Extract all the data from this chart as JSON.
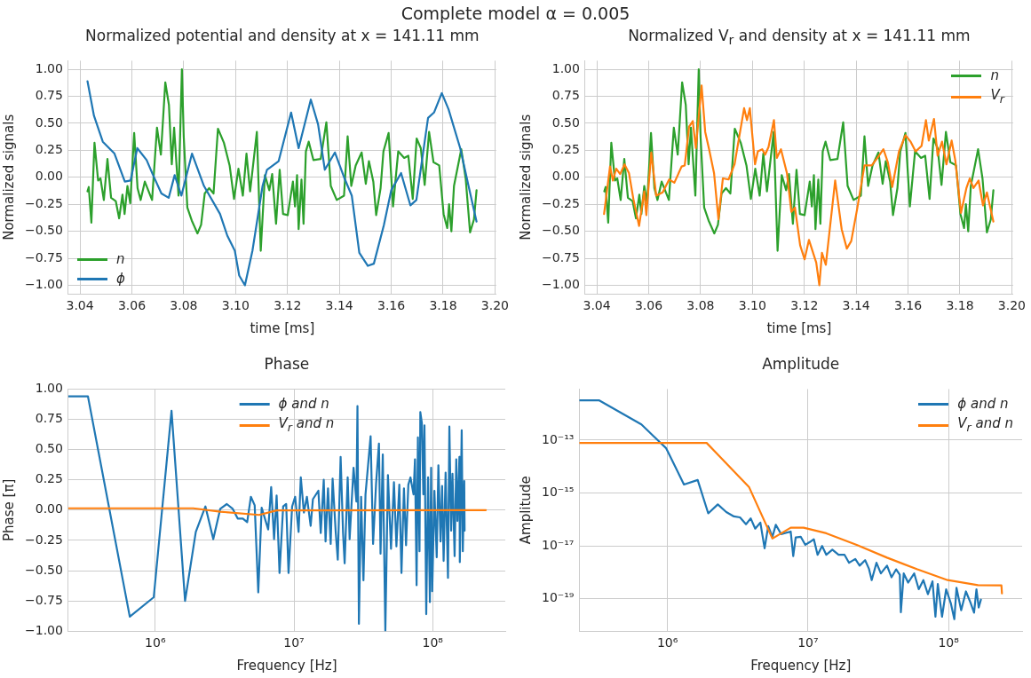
{
  "chart_data": [
    {
      "type": "line",
      "title": "Normalized potential and density at x = 141.11 mm",
      "annotations": [
        "Complete model α = 0.005"
      ],
      "xlabel": "time [ms]",
      "ylabel": "Normalized signals",
      "xlim": [
        3.0355,
        3.2005
      ],
      "ylim": [
        -1.08,
        1.08
      ],
      "xticks": [
        {
          "value": 3.04,
          "label": "3.04"
        },
        {
          "value": 3.06,
          "label": "3.06"
        },
        {
          "value": 3.08,
          "label": "3.08"
        },
        {
          "value": 3.1,
          "label": "3.10"
        },
        {
          "value": 3.12,
          "label": "3.12"
        },
        {
          "value": 3.14,
          "label": "3.14"
        },
        {
          "value": 3.16,
          "label": "3.16"
        },
        {
          "value": 3.18,
          "label": "3.18"
        },
        {
          "value": 3.2,
          "label": "3.20"
        }
      ],
      "yticks": [
        {
          "value": -1,
          "label": "−1.00"
        },
        {
          "value": -0.75,
          "label": "−0.75"
        },
        {
          "value": -0.5,
          "label": "−0.50"
        },
        {
          "value": -0.25,
          "label": "−0.25"
        },
        {
          "value": 0,
          "label": "0.00"
        },
        {
          "value": 0.25,
          "label": "0.25"
        },
        {
          "value": 0.5,
          "label": "0.50"
        },
        {
          "value": 0.75,
          "label": "0.75"
        },
        {
          "value": 1,
          "label": "1.00"
        }
      ],
      "grid": true,
      "legend": "bottom left",
      "series": [
        {
          "name": "n",
          "color": "#2ca02c",
          "x": [
            3.0429,
            3.0434,
            3.0444,
            3.0456,
            3.047,
            3.0479,
            3.0492,
            3.0506,
            3.052,
            3.0538,
            3.0551,
            3.0564,
            3.0572,
            3.0583,
            3.0594,
            3.0609,
            3.0622,
            3.0634,
            3.065,
            3.0678,
            3.0697,
            3.0712,
            3.0729,
            3.0743,
            3.0754,
            3.0763,
            3.078,
            3.0793,
            3.08,
            3.0814,
            3.0831,
            3.0853,
            3.0867,
            3.0881,
            3.0898,
            3.0915,
            3.0932,
            3.0955,
            3.0977,
            3.0994,
            3.1011,
            3.1028,
            3.1042,
            3.1056,
            3.1082,
            3.1097,
            3.1113,
            3.113,
            3.1141,
            3.1156,
            3.117,
            3.1183,
            3.1201,
            3.1221,
            3.1229,
            3.1237,
            3.1243,
            3.1254,
            3.1262,
            3.1271,
            3.1282,
            3.13,
            3.1328,
            3.135,
            3.1367,
            3.139,
            3.1418,
            3.1432,
            3.1446,
            3.1463,
            3.1486,
            3.1502,
            3.1514,
            3.1531,
            3.1542,
            3.1559,
            3.157,
            3.159,
            3.1607,
            3.1627,
            3.165,
            3.1666,
            3.1683,
            3.1698,
            3.1714,
            3.1729,
            3.1746,
            3.1763,
            3.1785,
            3.1802,
            3.1816,
            3.1823,
            3.1832,
            3.1842,
            3.187,
            3.1887,
            3.1904,
            3.1919,
            3.1929
          ],
          "values": [
            -0.13,
            -0.09,
            -0.42,
            0.32,
            -0.03,
            -0.01,
            -0.21,
            0.17,
            -0.19,
            -0.22,
            -0.38,
            -0.16,
            -0.34,
            -0.08,
            -0.24,
            0.41,
            -0.1,
            -0.21,
            -0.04,
            -0.21,
            0.46,
            0.21,
            0.88,
            0.67,
            0.12,
            0.46,
            -0.17,
            1.0,
            0.38,
            -0.28,
            -0.4,
            -0.52,
            -0.44,
            -0.15,
            -0.1,
            -0.15,
            0.45,
            0.32,
            0.11,
            -0.2,
            0.08,
            -0.17,
            0.22,
            -0.13,
            0.42,
            -0.68,
            0.02,
            -0.12,
            0.03,
            -0.43,
            0.07,
            -0.34,
            -0.35,
            -0.04,
            -0.27,
            0.02,
            -0.48,
            -0.02,
            -0.43,
            0.24,
            0.33,
            0.16,
            0.17,
            0.51,
            -0.08,
            -0.21,
            -0.17,
            0.38,
            -0.08,
            0.11,
            0.23,
            -0.06,
            0.15,
            -0.04,
            -0.35,
            -0.1,
            0.24,
            0.41,
            -0.27,
            0.24,
            0.18,
            0.2,
            -0.2,
            0.36,
            0.27,
            -0.07,
            0.42,
            0.14,
            0.11,
            -0.34,
            -0.47,
            -0.25,
            -0.5,
            -0.08,
            0.26,
            -0.01,
            -0.51,
            -0.39,
            -0.12
          ]
        },
        {
          "name": "ϕ",
          "color": "#1f77b4",
          "x": [
            3.0429,
            3.0454,
            3.0488,
            3.0533,
            3.0573,
            3.0595,
            3.0621,
            3.0657,
            3.068,
            3.0714,
            3.0742,
            3.0765,
            3.0791,
            3.0832,
            3.0878,
            3.094,
            3.0968,
            3.0997,
            3.1014,
            3.1036,
            3.1065,
            3.1104,
            3.1121,
            3.1166,
            3.1214,
            3.1243,
            3.129,
            3.1318,
            3.1344,
            3.1383,
            3.142,
            3.1448,
            3.1477,
            3.151,
            3.1533,
            3.1572,
            3.16,
            3.1638,
            3.1674,
            3.1697,
            3.1742,
            3.1765,
            3.1795,
            3.1821,
            3.1866,
            3.19,
            3.1929
          ],
          "values": [
            0.89,
            0.57,
            0.33,
            0.22,
            -0.04,
            -0.03,
            0.27,
            0.16,
            0.03,
            -0.15,
            -0.19,
            0.02,
            -0.17,
            0.22,
            -0.08,
            -0.34,
            -0.54,
            -0.68,
            -0.91,
            -1.0,
            -0.68,
            -0.08,
            0.07,
            0.15,
            0.6,
            0.27,
            0.72,
            0.49,
            0.07,
            0.23,
            -0.01,
            -0.17,
            -0.7,
            -0.82,
            -0.8,
            -0.44,
            -0.12,
            0.04,
            -0.26,
            -0.21,
            0.55,
            0.6,
            0.78,
            0.63,
            0.27,
            -0.1,
            -0.41
          ]
        }
      ]
    },
    {
      "type": "line",
      "title": "Normalized V$_{r}$ and density at x = 141.11 mm",
      "xlabel": "time [ms]",
      "ylabel": "Normalized signals",
      "xlim": [
        3.0355,
        3.2005
      ],
      "ylim": [
        -1.08,
        1.08
      ],
      "xticks": [
        {
          "value": 3.04,
          "label": "3.04"
        },
        {
          "value": 3.06,
          "label": "3.06"
        },
        {
          "value": 3.08,
          "label": "3.08"
        },
        {
          "value": 3.1,
          "label": "3.10"
        },
        {
          "value": 3.12,
          "label": "3.12"
        },
        {
          "value": 3.14,
          "label": "3.14"
        },
        {
          "value": 3.16,
          "label": "3.16"
        },
        {
          "value": 3.18,
          "label": "3.18"
        },
        {
          "value": 3.2,
          "label": "3.20"
        }
      ],
      "yticks": [
        {
          "value": -1,
          "label": "−1.00"
        },
        {
          "value": -0.75,
          "label": "−0.75"
        },
        {
          "value": -0.5,
          "label": "−0.50"
        },
        {
          "value": -0.25,
          "label": "−0.25"
        },
        {
          "value": 0,
          "label": "0.00"
        },
        {
          "value": 0.25,
          "label": "0.25"
        },
        {
          "value": 0.5,
          "label": "0.50"
        },
        {
          "value": 0.75,
          "label": "0.75"
        },
        {
          "value": 1,
          "label": "1.00"
        }
      ],
      "grid": true,
      "legend": "top right",
      "series": [
        {
          "name": "n",
          "color": "#2ca02c",
          "x": [
            3.0429,
            3.0434,
            3.0444,
            3.0456,
            3.047,
            3.0479,
            3.0492,
            3.0506,
            3.052,
            3.0538,
            3.0551,
            3.0564,
            3.0572,
            3.0583,
            3.0594,
            3.0609,
            3.0622,
            3.0634,
            3.065,
            3.0678,
            3.0697,
            3.0712,
            3.0729,
            3.0743,
            3.0754,
            3.0763,
            3.078,
            3.0793,
            3.08,
            3.0814,
            3.0831,
            3.0853,
            3.0867,
            3.0881,
            3.0898,
            3.0915,
            3.0932,
            3.0955,
            3.0977,
            3.0994,
            3.1011,
            3.1028,
            3.1042,
            3.1056,
            3.1082,
            3.1097,
            3.1113,
            3.113,
            3.1141,
            3.1156,
            3.117,
            3.1183,
            3.1201,
            3.1221,
            3.1229,
            3.1237,
            3.1243,
            3.1254,
            3.1262,
            3.1271,
            3.1282,
            3.13,
            3.1328,
            3.135,
            3.1367,
            3.139,
            3.1418,
            3.1432,
            3.1446,
            3.1463,
            3.1486,
            3.1502,
            3.1514,
            3.1531,
            3.1542,
            3.1559,
            3.157,
            3.159,
            3.1607,
            3.1627,
            3.165,
            3.1666,
            3.1683,
            3.1698,
            3.1714,
            3.1729,
            3.1746,
            3.1763,
            3.1785,
            3.1802,
            3.1816,
            3.1823,
            3.1832,
            3.1842,
            3.187,
            3.1887,
            3.1904,
            3.1919,
            3.1929
          ],
          "values": [
            -0.13,
            -0.09,
            -0.42,
            0.32,
            -0.03,
            -0.01,
            -0.21,
            0.17,
            -0.19,
            -0.22,
            -0.38,
            -0.16,
            -0.34,
            -0.08,
            -0.24,
            0.41,
            -0.1,
            -0.21,
            -0.04,
            -0.21,
            0.46,
            0.21,
            0.88,
            0.67,
            0.12,
            0.46,
            -0.17,
            1.0,
            0.38,
            -0.28,
            -0.4,
            -0.52,
            -0.44,
            -0.15,
            -0.1,
            -0.15,
            0.45,
            0.32,
            0.11,
            -0.2,
            0.08,
            -0.17,
            0.22,
            -0.13,
            0.42,
            -0.68,
            0.02,
            -0.12,
            0.03,
            -0.43,
            0.07,
            -0.34,
            -0.35,
            -0.04,
            -0.27,
            0.02,
            -0.48,
            -0.02,
            -0.43,
            0.24,
            0.33,
            0.16,
            0.17,
            0.51,
            -0.08,
            -0.21,
            -0.17,
            0.38,
            -0.08,
            0.11,
            0.23,
            -0.06,
            0.15,
            -0.04,
            -0.35,
            -0.1,
            0.24,
            0.41,
            -0.27,
            0.24,
            0.18,
            0.2,
            -0.2,
            0.36,
            0.27,
            -0.07,
            0.42,
            0.14,
            0.11,
            -0.34,
            -0.47,
            -0.25,
            -0.5,
            -0.08,
            0.26,
            -0.01,
            -0.51,
            -0.39,
            -0.12
          ]
        },
        {
          "name": "V$_{r}$",
          "color": "#ff7f0e",
          "x": [
            3.0428,
            3.0451,
            3.0462,
            3.0475,
            3.049,
            3.0507,
            3.0524,
            3.0541,
            3.0563,
            3.0583,
            3.0591,
            3.061,
            3.0629,
            3.0654,
            3.0679,
            3.0699,
            3.0727,
            3.0739,
            3.0756,
            3.077,
            3.0782,
            3.0804,
            3.0818,
            3.0833,
            3.0852,
            3.0869,
            3.0886,
            3.0908,
            3.0931,
            3.0968,
            3.0979,
            3.099,
            3.101,
            3.1021,
            3.1038,
            3.1049,
            3.1062,
            3.1083,
            3.1094,
            3.111,
            3.1133,
            3.115,
            3.1164,
            3.1184,
            3.1201,
            3.1218,
            3.1246,
            3.1258,
            3.1268,
            3.1283,
            3.1319,
            3.1344,
            3.1364,
            3.1381,
            3.1404,
            3.1432,
            3.146,
            3.1488,
            3.1505,
            3.1522,
            3.1539,
            3.1565,
            3.159,
            3.161,
            3.1629,
            3.1652,
            3.1669,
            3.168,
            3.17,
            3.1714,
            3.1731,
            3.1748,
            3.1768,
            3.1782,
            3.1804,
            3.1825,
            3.1838,
            3.1852,
            3.1872,
            3.1889,
            3.1904,
            3.1929
          ],
          "values": [
            -0.34,
            0.1,
            -0.03,
            0.08,
            0.03,
            0.12,
            0.04,
            -0.2,
            -0.45,
            -0.13,
            -0.35,
            0.23,
            -0.17,
            -0.14,
            -0.02,
            -0.05,
            0.1,
            0.11,
            0.47,
            0.52,
            0.27,
            0.85,
            0.42,
            0.26,
            0.04,
            -0.39,
            -0.01,
            -0.02,
            0.12,
            0.64,
            0.53,
            0.64,
            0.12,
            0.24,
            0.26,
            0.21,
            0.28,
            0.53,
            0.18,
            0.26,
            0.04,
            -0.32,
            -0.28,
            -0.63,
            -0.76,
            -0.58,
            -0.79,
            -1.0,
            -0.7,
            -0.81,
            -0.03,
            -0.48,
            -0.66,
            -0.59,
            -0.29,
            0.11,
            0.11,
            0.2,
            0.26,
            0.14,
            -0.09,
            0.24,
            0.39,
            0.33,
            0.24,
            0.29,
            0.53,
            0.34,
            0.54,
            0.2,
            0.33,
            0.12,
            0.34,
            0.16,
            -0.33,
            -0.1,
            -0.01,
            -0.1,
            -0.03,
            -0.26,
            -0.14,
            -0.41
          ]
        }
      ]
    },
    {
      "type": "line",
      "title": "Phase",
      "xlabel": "Frequency [Hz]",
      "ylabel": "Phase [π]",
      "log": "x",
      "xlim": [
        236000,
        334000000
      ],
      "ylim": [
        -1,
        1
      ],
      "xticks": [
        {
          "value": 1000000,
          "label": "10⁶"
        },
        {
          "value": 10000000,
          "label": "10⁷"
        },
        {
          "value": 100000000,
          "label": "10⁸"
        }
      ],
      "yticks": [
        {
          "value": -1,
          "label": "−1.00"
        },
        {
          "value": -0.75,
          "label": "−0.75"
        },
        {
          "value": -0.5,
          "label": "−0.50"
        },
        {
          "value": -0.25,
          "label": "−0.25"
        },
        {
          "value": 0,
          "label": "0.00"
        },
        {
          "value": 0.25,
          "label": "0.25"
        },
        {
          "value": 0.5,
          "label": "0.50"
        },
        {
          "value": 0.75,
          "label": "0.75"
        },
        {
          "value": 1,
          "label": "1.00"
        }
      ],
      "grid": true,
      "legend": "top",
      "series": [
        {
          "name": "ϕ and n",
          "color": "#1f77b4",
          "x": [
            236000.0,
            327000.0,
            655000.0,
            975000.0,
            1310000.0,
            1640000.0,
            1960000.0,
            2300000.0,
            2620000.0,
            2940000.0,
            3280000.0,
            3620000.0,
            3930000.0,
            4280000.0,
            4600000.0,
            4890000.0,
            5210000.0,
            5530000.0,
            5850000.0,
            6520000.0,
            6850000.0,
            7190000.0,
            7500000.0,
            7870000.0,
            8360000.0,
            8790000.0,
            9140000.0,
            9700000.0,
            10200000.0,
            10800000.0,
            11200000.0,
            11800000.0,
            12400000.0,
            13200000.0,
            13700000.0,
            15000000.0,
            15600000.0,
            16400000.0,
            16900000.0,
            17600000.0,
            18400000.0,
            19000000.0,
            20000000.0,
            20700000.0,
            21700000.0,
            22600000.0,
            23200000.0,
            24400000.0,
            25200000.0,
            26900000.0,
            28200000.0,
            28700000.0,
            29400000.0,
            30500000.0,
            31700000.0,
            32800000.0,
            35700000.0,
            37200000.0,
            39100000.0,
            41000000.0,
            42100000.0,
            43700000.0,
            45600000.0,
            47600000.0,
            50100000.0,
            52600000.0,
            54800000.0,
            57500000.0,
            59600000.0,
            62100000.0,
            64300000.0,
            66800000.0,
            69200000.0,
            72800000.0,
            74600000.0,
            76600000.0,
            78300000.0,
            80400000.0,
            81500000.0,
            83600000.0,
            85700000.0,
            87300000.0,
            89900000.0,
            92700000.0,
            95500000.0,
            97500000.0,
            99300000.0,
            103000000.0,
            107000000.0,
            110000000.0,
            114000000.0,
            117000000.0,
            120000000.0,
            124000000.0,
            129000000.0,
            132000000.0,
            136000000.0,
            139000000.0,
            144000000.0,
            148000000.0,
            151000000.0,
            156000000.0,
            157000000.0,
            162000000.0,
            165000000.0,
            169000000.0,
            170000000.0
          ],
          "values": [
            0.94,
            0.94,
            -0.88,
            -0.72,
            0.82,
            -0.75,
            -0.18,
            0.03,
            -0.24,
            0.01,
            0.05,
            0.01,
            -0.07,
            -0.07,
            -0.1,
            0.11,
            0.04,
            -0.68,
            0.02,
            -0.16,
            0.19,
            -0.24,
            0.12,
            -0.52,
            0.03,
            0.05,
            -0.52,
            0.03,
            0.11,
            -0.18,
            0.27,
            -0.02,
            0.11,
            -0.13,
            0.09,
            0.16,
            -0.19,
            0.25,
            -0.26,
            0.18,
            -0.28,
            0.26,
            -0.18,
            -0.41,
            0.44,
            -0.19,
            -0.44,
            0.27,
            -0.24,
            0.35,
            0.07,
            0.86,
            -0.94,
            0.11,
            -0.58,
            0.13,
            0.61,
            -0.28,
            0.22,
            0.55,
            -0.36,
            0.46,
            -1.0,
            0.29,
            -0.32,
            0.23,
            -0.3,
            0.21,
            -0.52,
            0.18,
            -0.29,
            0.21,
            0.27,
            0.13,
            0.42,
            -0.62,
            0.6,
            -0.34,
            0.81,
            0.72,
            0.13,
            0.7,
            -0.86,
            0.27,
            -0.76,
            0.35,
            -0.67,
            0.16,
            -0.39,
            0.37,
            -0.26,
            0.2,
            -0.42,
            0.31,
            -0.56,
            0.69,
            -0.17,
            0.3,
            -0.38,
            0.42,
            -0.09,
            0.44,
            -0.43,
            0.66,
            -0.34,
            0.24,
            -0.17
          ]
        },
        {
          "name": "V$_{r}$ and n",
          "color": "#ff7f0e",
          "x": [
            236000.0,
            1880000.0,
            2940000.0,
            5610000.0,
            7500000.0,
            242000000.0
          ],
          "values": [
            0.015,
            0.015,
            -0.013,
            -0.04,
            -0.002,
            0
          ]
        }
      ]
    },
    {
      "type": "line",
      "title": "Amplitude",
      "xlabel": "Frequency [Hz]",
      "ylabel": "Amplitude",
      "log": "xy",
      "xlim": [
        236000,
        334000000
      ],
      "ylim": [
        6e-21,
        8.5e-12
      ],
      "xticks": [
        {
          "value": 1000000,
          "label": "10⁶"
        },
        {
          "value": 10000000,
          "label": "10⁷"
        },
        {
          "value": 100000000,
          "label": "10⁸"
        }
      ],
      "yticks": [
        {
          "value": 1e-19,
          "label": "10⁻¹⁹"
        },
        {
          "value": 1e-17,
          "label": "10⁻¹⁷"
        },
        {
          "value": 1e-15,
          "label": "10⁻¹⁵"
        },
        {
          "value": 1e-13,
          "label": "10⁻¹³"
        }
      ],
      "grid": true,
      "legend": "top right",
      "series": [
        {
          "name": "ϕ and n",
          "color": "#1f77b4",
          "x": [
            236000.0,
            325000.0,
            652000.0,
            836000.0,
            979000.0,
            1310000.0,
            1640000.0,
            1950000.0,
            2280000.0,
            2620000.0,
            2970000.0,
            3280000.0,
            3620000.0,
            3910000.0,
            4210000.0,
            4580000.0,
            4910000.0,
            5210000.0,
            5580000.0,
            5900000.0,
            6430000.0,
            7530000.0,
            7850000.0,
            8170000.0,
            8890000.0,
            9570000.0,
            10300000.0,
            11000000.0,
            11700000.0,
            12600000.0,
            13500000.0,
            14900000.0,
            16500000.0,
            18200000.0,
            19600000.0,
            21700000.0,
            23300000.0,
            25500000.0,
            27100000.0,
            28400000.0,
            30700000.0,
            33000000.0,
            36500000.0,
            39300000.0,
            42400000.0,
            45000000.0,
            45800000.0,
            48000000.0,
            51600000.0,
            57000000.0,
            61400000.0,
            66200000.0,
            71300000.0,
            76900000.0,
            80700000.0,
            83900000.0,
            89900000.0,
            96200000.0,
            104000000.0,
            110000000.0,
            114000000.0,
            123000000.0,
            133000000.0,
            143000000.0,
            152000000.0,
            158000000.0,
            164000000.0,
            170000000.0
          ],
          "values": [
            3.2e-12,
            3.2e-12,
            3.9e-13,
            1.1e-13,
            4.9e-14,
            2.1e-15,
            3.1e-15,
            1.7e-16,
            3.7e-16,
            1.9e-16,
            1.3e-16,
            1.2e-16,
            6.6e-17,
            1.1e-16,
            4.5e-17,
            7.6e-17,
            8.1e-18,
            5.6e-17,
            2.2e-17,
            6.3e-17,
            2.8e-17,
            3.5e-17,
            4.1e-18,
            2.1e-17,
            2.2e-17,
            1.1e-17,
            1.4e-17,
            1.8e-17,
            4.6e-18,
            1e-17,
            4.6e-18,
            7.2e-18,
            4.6e-18,
            4.6e-18,
            2.3e-18,
            3.2e-18,
            1.8e-18,
            2.9e-18,
            1.4e-18,
            5.1e-19,
            2.3e-18,
            9.1e-19,
            1.8e-18,
            6.5e-19,
            1.3e-18,
            8.1e-19,
            3.1e-20,
            9.1e-19,
            4.1e-19,
            9.1e-19,
            2.3e-19,
            5.1e-19,
            1.5e-19,
            4.6e-19,
            2.1e-20,
            3.6e-19,
            2.1e-20,
            2.3e-19,
            6.6e-20,
            1.7e-20,
            2.6e-19,
            3.7e-20,
            1.9e-19,
            7.4e-20,
            3e-20,
            2.3e-19,
            4.7e-20,
            9.3e-20
          ]
        },
        {
          "name": "V$_{r}$ and n",
          "color": "#ff7f0e",
          "x": [
            236000.0,
            1900000.0,
            3800000.0,
            5580000.0,
            7530000.0,
            9310000.0,
            13500000.0,
            22200000.0,
            36500000.0,
            60000000.0,
            98600000.0,
            162000000.0,
            238000000.0,
            240000000.0
          ],
          "values": [
            7.8e-14,
            7.8e-14,
            1.7e-15,
            1.9e-17,
            4.9e-17,
            4.9e-17,
            3e-17,
            1.1e-17,
            3.6e-18,
            1.3e-18,
            5.1e-19,
            3.3e-19,
            3.2e-19,
            1.6e-19
          ]
        }
      ]
    }
  ]
}
